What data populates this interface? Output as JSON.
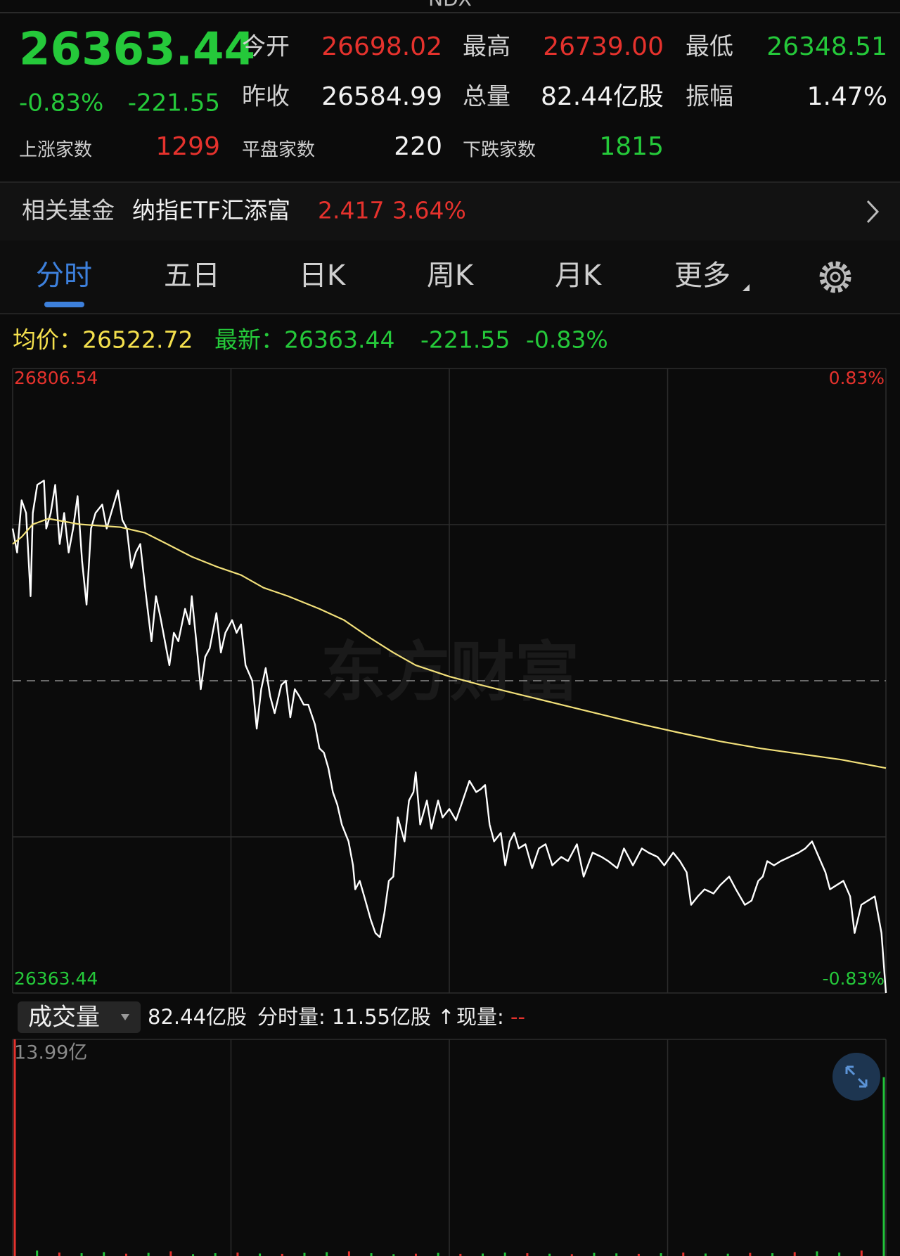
{
  "header": {
    "title": "NDX",
    "price": "26363.44",
    "change_pct": "-0.83%",
    "change": "-221.55",
    "stats": [
      [
        {
          "label": "今开",
          "value": "26698.02"
        },
        {
          "label": "最高",
          "value": "26739.00"
        },
        {
          "label": "最低",
          "value": "26348.51"
        }
      ],
      [
        {
          "label": "昨收",
          "value": "26584.99"
        },
        {
          "label": "总量",
          "value": "82.44亿股"
        },
        {
          "label": "振幅",
          "value": "1.47%"
        }
      ]
    ],
    "breadth": [
      {
        "label": "上涨家数",
        "value": "1299"
      },
      {
        "label": "平盘家数",
        "value": "220"
      },
      {
        "label": "下跌家数",
        "value": "1815"
      }
    ]
  },
  "fund": {
    "label": "相关基金",
    "name": "纳指ETF汇添富",
    "price": "2.417",
    "change": "3.64%"
  },
  "tabs": [
    "分时",
    "五日",
    "日K",
    "周K",
    "月K",
    "更多"
  ],
  "quote_bar": [
    "均价：26522.72",
    "最新：26363.44",
    "-221.55",
    "-0.83%"
  ],
  "watermark": "东方财富",
  "volume_bar": {
    "button": "成交量",
    "total": "82.44亿股",
    "minute_label": "分时量: 11.55亿股 ↑",
    "current_label": "现量:",
    "current": "--"
  },
  "chart_data": [
    {
      "type": "line",
      "grid": true,
      "xlim": [
        0,
        390
      ],
      "ylim": [
        26363.44,
        26806.54
      ],
      "yticks": [
        26806.54,
        26363.44
      ],
      "y2lim": [
        -0.83,
        0.83
      ],
      "y2ticks": [
        {
          "value": 0.83,
          "label": "0.83%"
        },
        {
          "value": -0.83,
          "label": "-0.83%"
        }
      ],
      "series": [
        {
          "color": "#ffffff",
          "x": [
            0,
            2,
            4,
            6,
            8,
            9,
            11,
            14,
            15,
            17,
            19,
            21,
            23,
            25,
            27,
            29,
            31,
            33,
            35,
            37,
            40,
            42,
            44,
            47,
            49,
            51,
            53,
            55,
            57,
            59,
            62,
            64,
            66,
            68,
            70,
            72,
            74,
            77,
            79,
            80,
            82,
            84,
            86,
            88,
            91,
            93,
            95,
            98,
            100,
            102,
            104,
            107,
            109,
            111,
            113,
            115,
            117,
            120,
            122,
            124,
            126,
            128,
            130,
            132,
            135,
            137,
            139,
            141,
            143,
            145,
            147,
            150,
            152,
            153,
            155,
            157,
            160,
            162,
            164,
            166,
            168,
            170,
            172,
            175,
            177,
            179,
            180,
            182,
            185,
            187,
            190,
            192,
            195,
            198,
            201,
            204,
            207,
            209,
            211,
            213,
            215,
            218,
            220,
            222,
            224,
            226,
            229,
            232,
            235,
            238,
            241,
            245,
            248,
            252,
            255,
            259,
            263,
            266,
            270,
            273,
            277,
            281,
            284,
            288,
            291,
            295,
            298,
            301,
            303,
            306,
            309,
            313,
            316,
            320,
            323,
            327,
            330,
            333,
            335,
            337,
            340,
            343,
            347,
            351,
            354,
            357,
            360,
            363,
            365,
            368,
            371,
            374,
            376,
            379,
            382,
            385,
            388,
            390
          ],
          "values": [
            26693,
            26676,
            26713,
            26704,
            26645,
            26704,
            26724,
            26727,
            26693,
            26704,
            26724,
            26682,
            26704,
            26676,
            26693,
            26716,
            26670,
            26639,
            26693,
            26704,
            26710,
            26693,
            26704,
            26720,
            26699,
            26693,
            26665,
            26676,
            26682,
            26653,
            26613,
            26645,
            26630,
            26613,
            26596,
            26619,
            26613,
            26636,
            26625,
            26645,
            26613,
            26579,
            26602,
            26608,
            26633,
            26605,
            26619,
            26628,
            26619,
            26625,
            26596,
            26585,
            26551,
            26579,
            26594,
            26574,
            26562,
            26582,
            26585,
            26559,
            26579,
            26574,
            26568,
            26568,
            26554,
            26537,
            26534,
            26523,
            26506,
            26497,
            26483,
            26471,
            26454,
            26437,
            26443,
            26432,
            26415,
            26406,
            26403,
            26420,
            26443,
            26446,
            26488,
            26471,
            26500,
            26506,
            26520,
            26483,
            26500,
            26480,
            26500,
            26488,
            26494,
            26486,
            26500,
            26514,
            26506,
            26508,
            26511,
            26483,
            26471,
            26477,
            26454,
            26471,
            26477,
            26466,
            26469,
            26452,
            26466,
            26469,
            26454,
            26460,
            26457,
            26469,
            26446,
            26463,
            26460,
            26457,
            26452,
            26466,
            26454,
            26466,
            26463,
            26460,
            26454,
            26463,
            26457,
            26449,
            26426,
            26432,
            26437,
            26434,
            26440,
            26446,
            26437,
            26426,
            26429,
            26443,
            26446,
            26457,
            26454,
            26457,
            26460,
            26463,
            26466,
            26471,
            26460,
            26449,
            26437,
            26440,
            26443,
            26432,
            26406,
            26426,
            26429,
            26432,
            26406,
            26363.44
          ]
        },
        {
          "color": "#f2e07a",
          "x": [
            0,
            4,
            9,
            16,
            30,
            48,
            59,
            69,
            80,
            91,
            102,
            112,
            123,
            137,
            148,
            159,
            170,
            180,
            195,
            209,
            227,
            245,
            263,
            281,
            298,
            316,
            334,
            352,
            370,
            390
          ],
          "values": [
            26682,
            26687,
            26696,
            26700,
            26696,
            26694,
            26690,
            26682,
            26673,
            26666,
            26660,
            26651,
            26645,
            26636,
            26628,
            26616,
            26605,
            26596,
            26588,
            26582,
            26575,
            26568,
            26561,
            26554,
            26548,
            26542,
            26537,
            26533,
            26529,
            26523
          ]
        }
      ]
    },
    {
      "type": "bar",
      "grid": true,
      "ylim": [
        0,
        13.99
      ],
      "yticks": [
        {
          "value": 13.99,
          "label": "13.99亿"
        }
      ],
      "values": [
        13.99,
        0.35,
        0.22,
        0.18,
        0.25,
        0.15,
        0.2,
        0.3,
        0.12,
        0.18,
        0.22,
        0.16,
        0.14,
        0.2,
        0.25,
        0.3,
        0.18,
        0.12,
        0.15,
        0.2,
        0.14,
        0.16,
        0.22,
        0.18,
        0.15,
        0.12,
        0.2,
        0.17,
        0.14,
        0.18,
        0.22,
        0.16,
        0.15,
        0.2,
        0.18,
        0.25,
        0.3,
        0.22,
        0.35,
        11.55
      ],
      "colors": [
        "#e5322d",
        "#22c33a",
        "#e5322d",
        "#22c33a",
        "#22c33a",
        "#e5322d",
        "#22c33a",
        "#e5322d",
        "#22c33a",
        "#22c33a",
        "#e5322d",
        "#22c33a",
        "#e5322d",
        "#22c33a",
        "#22c33a",
        "#e5322d",
        "#22c33a",
        "#22c33a",
        "#e5322d",
        "#22c33a",
        "#e5322d",
        "#22c33a",
        "#22c33a",
        "#e5322d",
        "#22c33a",
        "#e5322d",
        "#22c33a",
        "#22c33a",
        "#e5322d",
        "#22c33a",
        "#e5322d",
        "#22c33a",
        "#22c33a",
        "#e5322d",
        "#22c33a",
        "#e5322d",
        "#22c33a",
        "#22c33a",
        "#e5322d",
        "#22c33a"
      ]
    }
  ]
}
